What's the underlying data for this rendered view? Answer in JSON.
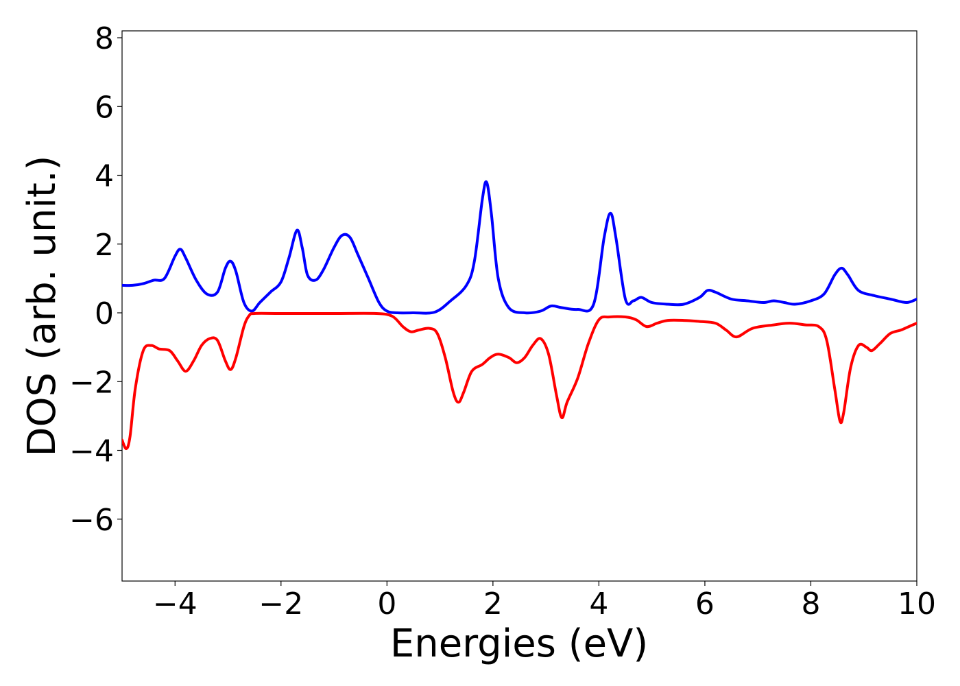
{
  "chart_data": {
    "type": "line",
    "title": "",
    "xlabel": "Energies (eV)",
    "ylabel": "DOS (arb. unit.)",
    "xlim": [
      -5,
      10
    ],
    "ylim": [
      -7.8,
      8.2
    ],
    "xticks": [
      -4,
      -2,
      0,
      2,
      4,
      6,
      8,
      10
    ],
    "yticks": [
      -6,
      -4,
      -2,
      0,
      2,
      4,
      6,
      8
    ],
    "xtick_labels": [
      "−4",
      "−2",
      "0",
      "2",
      "4",
      "6",
      "8",
      "10"
    ],
    "ytick_labels": [
      "−6",
      "−4",
      "−2",
      "0",
      "2",
      "4",
      "6",
      "8"
    ],
    "grid": false,
    "legend": "none",
    "series": [
      {
        "color": "#0000ff",
        "x": [
          -5.0,
          -4.8,
          -4.6,
          -4.4,
          -4.2,
          -4.0,
          -3.9,
          -3.8,
          -3.6,
          -3.4,
          -3.2,
          -3.05,
          -2.95,
          -2.85,
          -2.7,
          -2.55,
          -2.4,
          -2.2,
          -2.0,
          -1.85,
          -1.7,
          -1.6,
          -1.5,
          -1.35,
          -1.2,
          -1.0,
          -0.85,
          -0.7,
          -0.55,
          -0.35,
          -0.15,
          0.0,
          0.2,
          0.5,
          0.9,
          1.2,
          1.5,
          1.65,
          1.8,
          1.88,
          1.97,
          2.1,
          2.3,
          2.6,
          2.9,
          3.1,
          3.3,
          3.6,
          3.9,
          4.1,
          4.22,
          4.32,
          4.5,
          4.65,
          4.8,
          5.0,
          5.3,
          5.6,
          5.9,
          6.05,
          6.2,
          6.5,
          6.8,
          7.1,
          7.3,
          7.5,
          7.7,
          8.0,
          8.25,
          8.45,
          8.58,
          8.7,
          8.9,
          9.2,
          9.5,
          9.8,
          10.0
        ],
        "y": [
          0.8,
          0.8,
          0.85,
          0.95,
          1.0,
          1.65,
          1.85,
          1.6,
          0.95,
          0.55,
          0.6,
          1.3,
          1.5,
          1.2,
          0.3,
          0.05,
          0.3,
          0.6,
          0.9,
          1.6,
          2.4,
          1.9,
          1.1,
          0.95,
          1.25,
          1.9,
          2.25,
          2.2,
          1.7,
          1.0,
          0.3,
          0.05,
          0.0,
          0.0,
          0.02,
          0.35,
          0.8,
          1.5,
          3.3,
          3.8,
          2.9,
          1.0,
          0.15,
          0.0,
          0.05,
          0.2,
          0.15,
          0.1,
          0.25,
          2.2,
          2.9,
          2.2,
          0.4,
          0.35,
          0.45,
          0.3,
          0.25,
          0.25,
          0.45,
          0.65,
          0.6,
          0.4,
          0.35,
          0.3,
          0.35,
          0.3,
          0.25,
          0.35,
          0.55,
          1.1,
          1.3,
          1.1,
          0.65,
          0.5,
          0.4,
          0.3,
          0.4
        ]
      },
      {
        "color": "#ff0000",
        "x": [
          -5.0,
          -4.92,
          -4.85,
          -4.75,
          -4.6,
          -4.45,
          -4.3,
          -4.1,
          -3.95,
          -3.8,
          -3.65,
          -3.5,
          -3.35,
          -3.2,
          -3.05,
          -2.95,
          -2.85,
          -2.7,
          -2.6,
          -2.5,
          -2.0,
          -1.0,
          -0.2,
          0.1,
          0.3,
          0.45,
          0.6,
          0.8,
          0.95,
          1.1,
          1.25,
          1.35,
          1.45,
          1.6,
          1.8,
          1.95,
          2.1,
          2.3,
          2.45,
          2.6,
          2.75,
          2.9,
          3.05,
          3.2,
          3.3,
          3.4,
          3.6,
          3.8,
          4.0,
          4.2,
          4.5,
          4.7,
          4.9,
          5.1,
          5.3,
          5.6,
          5.9,
          6.2,
          6.4,
          6.6,
          6.9,
          7.3,
          7.6,
          7.9,
          8.15,
          8.3,
          8.45,
          8.55,
          8.62,
          8.75,
          8.9,
          9.05,
          9.15,
          9.3,
          9.5,
          9.7,
          9.85,
          10.0
        ],
        "y": [
          -3.7,
          -3.95,
          -3.6,
          -2.2,
          -1.1,
          -0.95,
          -1.05,
          -1.1,
          -1.4,
          -1.7,
          -1.4,
          -0.95,
          -0.75,
          -0.8,
          -1.4,
          -1.65,
          -1.3,
          -0.4,
          -0.08,
          -0.02,
          -0.02,
          -0.02,
          -0.02,
          -0.1,
          -0.4,
          -0.55,
          -0.5,
          -0.45,
          -0.6,
          -1.3,
          -2.3,
          -2.6,
          -2.3,
          -1.7,
          -1.5,
          -1.3,
          -1.2,
          -1.3,
          -1.45,
          -1.3,
          -0.95,
          -0.75,
          -1.2,
          -2.4,
          -3.05,
          -2.6,
          -1.9,
          -0.9,
          -0.2,
          -0.12,
          -0.12,
          -0.2,
          -0.4,
          -0.3,
          -0.22,
          -0.22,
          -0.25,
          -0.3,
          -0.5,
          -0.7,
          -0.45,
          -0.35,
          -0.3,
          -0.35,
          -0.4,
          -0.8,
          -2.2,
          -3.15,
          -2.9,
          -1.6,
          -0.95,
          -1.0,
          -1.1,
          -0.9,
          -0.6,
          -0.5,
          -0.4,
          -0.3
        ]
      }
    ]
  }
}
